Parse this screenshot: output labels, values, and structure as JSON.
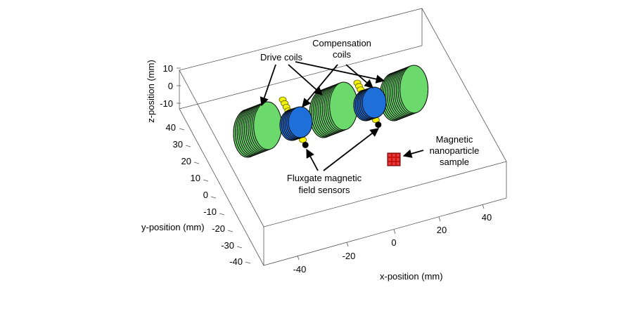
{
  "axes": {
    "z": {
      "title": "z-position (mm)",
      "ticks": [
        "10",
        "0",
        "-10"
      ]
    },
    "y": {
      "title": "y-position (mm)",
      "ticks": [
        "40",
        "30",
        "20",
        "10",
        "0",
        "-10",
        "-20",
        "-30",
        "-40"
      ]
    },
    "x": {
      "title": "x-position (mm)",
      "ticks": [
        "-40",
        "-20",
        "0",
        "20",
        "40"
      ]
    }
  },
  "annotations": {
    "drive_coils": "Drive coils",
    "compensation_line1": "Compensation",
    "compensation_line2": "coils",
    "fluxgate_line1": "Fluxgate magnetic",
    "fluxgate_line2": "field sensors",
    "sample_line1": "Magnetic",
    "sample_line2": "nanoparticle",
    "sample_line3": "sample"
  },
  "colors": {
    "drive_coil": "#6cd96c",
    "compensation_coil": "#1e6fd9",
    "sensor": "#f2f20a",
    "sample": "#cc1111",
    "box": "#555555"
  }
}
